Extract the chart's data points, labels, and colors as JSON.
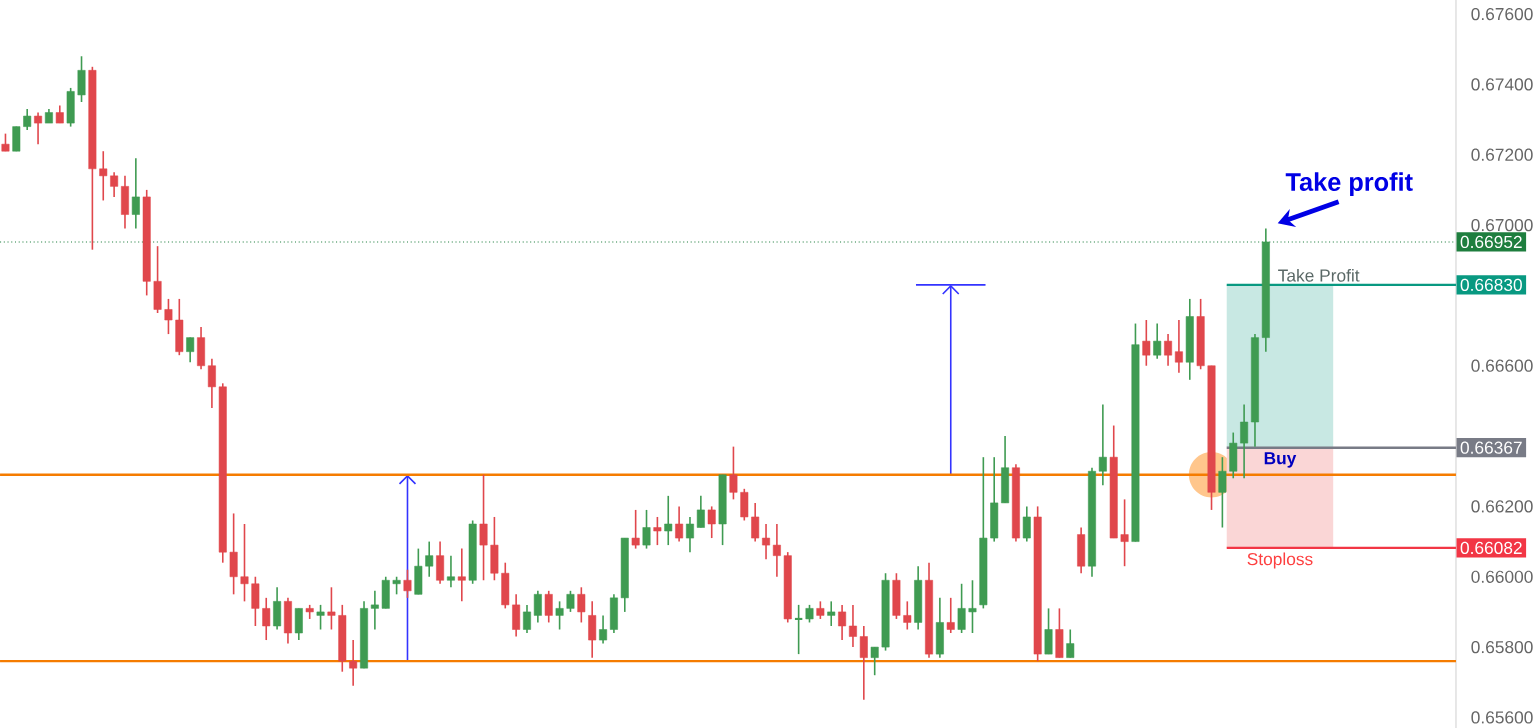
{
  "chart_data": {
    "type": "candlestick",
    "categories": [
      null,
      null,
      null,
      null,
      null,
      null,
      null,
      null,
      null,
      null,
      null,
      null,
      null,
      null,
      null,
      null,
      null,
      null,
      null,
      null,
      null,
      null,
      null,
      null,
      null,
      null,
      null,
      null,
      null,
      null,
      null,
      null,
      null,
      null,
      null,
      null,
      null,
      null,
      null,
      null,
      null,
      null,
      null,
      null,
      null,
      null,
      null,
      null,
      null,
      null,
      null,
      null,
      null,
      null,
      null,
      null,
      null,
      null,
      null,
      null,
      null,
      null,
      null,
      null,
      null,
      null,
      null,
      null,
      null,
      null,
      null,
      null,
      null,
      null,
      null,
      null,
      null,
      null,
      null,
      null,
      null,
      null,
      null,
      null,
      null,
      null,
      null,
      null,
      null,
      null,
      null,
      null,
      null,
      null,
      null,
      null,
      null,
      null,
      null,
      null,
      null,
      null,
      null,
      null,
      null,
      null,
      null,
      null,
      null,
      null,
      null,
      null,
      null,
      null,
      null,
      null,
      null,
      null,
      null,
      null,
      null,
      null,
      null,
      null,
      null,
      null,
      null,
      null,
      null,
      null,
      null,
      null,
      null,
      null
    ],
    "ohlc": [
      [
        0.6723,
        0.6726,
        0.6721,
        0.6721
      ],
      [
        0.6721,
        0.6728,
        0.6721,
        0.6728
      ],
      [
        0.6728,
        0.6733,
        0.6727,
        0.6731
      ],
      [
        0.6731,
        0.6732,
        0.6723,
        0.6729
      ],
      [
        0.6729,
        0.6733,
        0.6729,
        0.6732
      ],
      [
        0.6732,
        0.6734,
        0.6729,
        0.6729
      ],
      [
        0.6729,
        0.6739,
        0.6728,
        0.6738
      ],
      [
        0.6737,
        0.6748,
        0.6735,
        0.6744
      ],
      [
        0.6744,
        0.6745,
        0.6693,
        0.6716
      ],
      [
        0.6716,
        0.6721,
        0.6707,
        0.6714
      ],
      [
        0.6714,
        0.6715,
        0.6708,
        0.6711
      ],
      [
        0.6711,
        0.6714,
        0.6699,
        0.6703
      ],
      [
        0.6703,
        0.6719,
        0.6699,
        0.6708
      ],
      [
        0.6708,
        0.671,
        0.668,
        0.6684
      ],
      [
        0.6684,
        0.6694,
        0.6675,
        0.6676
      ],
      [
        0.6676,
        0.6679,
        0.6669,
        0.6673
      ],
      [
        0.6673,
        0.6679,
        0.6663,
        0.6664
      ],
      [
        0.6664,
        0.6668,
        0.6661,
        0.6668
      ],
      [
        0.6668,
        0.6671,
        0.6659,
        0.666
      ],
      [
        0.666,
        0.6662,
        0.6648,
        0.6654
      ],
      [
        0.6654,
        0.6655,
        0.6604,
        0.6607
      ],
      [
        0.6607,
        0.6618,
        0.6595,
        0.66
      ],
      [
        0.66,
        0.6615,
        0.6593,
        0.6598
      ],
      [
        0.6598,
        0.66,
        0.6586,
        0.6591
      ],
      [
        0.6591,
        0.6594,
        0.6582,
        0.6586
      ],
      [
        0.6586,
        0.6597,
        0.6585,
        0.6593
      ],
      [
        0.6593,
        0.6594,
        0.6581,
        0.6584
      ],
      [
        0.6584,
        0.6591,
        0.6582,
        0.6591
      ],
      [
        0.6591,
        0.6592,
        0.6588,
        0.659
      ],
      [
        0.6589,
        0.6592,
        0.6585,
        0.659
      ],
      [
        0.659,
        0.6597,
        0.6585,
        0.6589
      ],
      [
        0.6589,
        0.6592,
        0.6573,
        0.6576
      ],
      [
        0.6576,
        0.6582,
        0.6569,
        0.6574
      ],
      [
        0.6574,
        0.6593,
        0.6574,
        0.6591
      ],
      [
        0.6591,
        0.6596,
        0.6585,
        0.6592
      ],
      [
        0.6591,
        0.66,
        0.6591,
        0.6599
      ],
      [
        0.6598,
        0.66,
        0.6595,
        0.6599
      ],
      [
        0.6599,
        0.6602,
        0.6594,
        0.6596
      ],
      [
        0.6595,
        0.6608,
        0.6595,
        0.6603
      ],
      [
        0.6603,
        0.661,
        0.66,
        0.6606
      ],
      [
        0.6606,
        0.661,
        0.6598,
        0.6599
      ],
      [
        0.6599,
        0.6606,
        0.6597,
        0.66
      ],
      [
        0.66,
        0.6608,
        0.6593,
        0.6599
      ],
      [
        0.6599,
        0.6616,
        0.6598,
        0.6615
      ],
      [
        0.6615,
        0.6629,
        0.6599,
        0.6609
      ],
      [
        0.6609,
        0.6617,
        0.6599,
        0.6601
      ],
      [
        0.6601,
        0.6604,
        0.6591,
        0.6592
      ],
      [
        0.6592,
        0.6595,
        0.6583,
        0.6585
      ],
      [
        0.6585,
        0.6592,
        0.6584,
        0.659
      ],
      [
        0.6589,
        0.6596,
        0.6587,
        0.6595
      ],
      [
        0.6595,
        0.6596,
        0.6587,
        0.6589
      ],
      [
        0.6589,
        0.6593,
        0.6585,
        0.6591
      ],
      [
        0.6591,
        0.6596,
        0.659,
        0.6595
      ],
      [
        0.6595,
        0.6597,
        0.6587,
        0.659
      ],
      [
        0.6589,
        0.6593,
        0.6577,
        0.6582
      ],
      [
        0.6582,
        0.6589,
        0.6581,
        0.6585
      ],
      [
        0.6585,
        0.6595,
        0.6584,
        0.6594
      ],
      [
        0.6594,
        0.6611,
        0.659,
        0.6611
      ],
      [
        0.6611,
        0.6619,
        0.6608,
        0.6609
      ],
      [
        0.6609,
        0.6619,
        0.6608,
        0.6614
      ],
      [
        0.6614,
        0.6617,
        0.6609,
        0.6613
      ],
      [
        0.6613,
        0.6623,
        0.6609,
        0.6615
      ],
      [
        0.6615,
        0.662,
        0.661,
        0.6611
      ],
      [
        0.6611,
        0.6617,
        0.6607,
        0.6615
      ],
      [
        0.6614,
        0.6623,
        0.6614,
        0.6619
      ],
      [
        0.6619,
        0.662,
        0.6611,
        0.6615
      ],
      [
        0.6615,
        0.6629,
        0.6609,
        0.6629
      ],
      [
        0.6629,
        0.6637,
        0.6622,
        0.6624
      ],
      [
        0.6624,
        0.6625,
        0.6616,
        0.6617
      ],
      [
        0.6617,
        0.6621,
        0.661,
        0.6611
      ],
      [
        0.6611,
        0.6615,
        0.6605,
        0.6609
      ],
      [
        0.6609,
        0.6615,
        0.66,
        0.6606
      ],
      [
        0.6606,
        0.6607,
        0.6587,
        0.6588
      ],
      [
        0.6588,
        0.6592,
        0.6578,
        0.6588
      ],
      [
        0.6588,
        0.6592,
        0.6587,
        0.6591
      ],
      [
        0.6591,
        0.6593,
        0.6588,
        0.6589
      ],
      [
        0.6589,
        0.6593,
        0.6586,
        0.659
      ],
      [
        0.659,
        0.6592,
        0.6582,
        0.6586
      ],
      [
        0.6586,
        0.6592,
        0.658,
        0.6583
      ],
      [
        0.6583,
        0.6586,
        0.6565,
        0.6577
      ],
      [
        0.6577,
        0.658,
        0.6572,
        0.658
      ],
      [
        0.658,
        0.6601,
        0.6579,
        0.6599
      ],
      [
        0.6599,
        0.6601,
        0.6588,
        0.6589
      ],
      [
        0.6589,
        0.6593,
        0.6585,
        0.6587
      ],
      [
        0.6587,
        0.6603,
        0.6585,
        0.6599
      ],
      [
        0.6599,
        0.6604,
        0.6577,
        0.6578
      ],
      [
        0.6578,
        0.6594,
        0.6577,
        0.6587
      ],
      [
        0.6587,
        0.6594,
        0.6584,
        0.6585
      ],
      [
        0.6585,
        0.6598,
        0.6584,
        0.6591
      ],
      [
        0.659,
        0.6599,
        0.6584,
        0.6591
      ],
      [
        0.6592,
        0.6634,
        0.6591,
        0.6611
      ],
      [
        0.6611,
        0.6634,
        0.661,
        0.6621
      ],
      [
        0.6621,
        0.664,
        0.6621,
        0.6631
      ],
      [
        0.6631,
        0.6632,
        0.661,
        0.6611
      ],
      [
        0.6611,
        0.662,
        0.661,
        0.6617
      ],
      [
        0.6617,
        0.662,
        0.6576,
        0.6578
      ],
      [
        0.6578,
        0.6591,
        0.6578,
        0.6585
      ],
      [
        0.6585,
        0.6591,
        0.6577,
        0.6577
      ],
      [
        0.6577,
        0.6585,
        0.6577,
        0.6581
      ],
      [
        0.6612,
        0.6614,
        0.6601,
        0.6603
      ],
      [
        0.6603,
        0.6631,
        0.66,
        0.663
      ],
      [
        0.663,
        0.6649,
        0.6626,
        0.6634
      ],
      [
        0.6634,
        0.6643,
        0.6611,
        0.6611
      ],
      [
        0.6612,
        0.6622,
        0.6603,
        0.661
      ],
      [
        0.661,
        0.6672,
        0.661,
        0.6666
      ],
      [
        0.6667,
        0.6673,
        0.666,
        0.6663
      ],
      [
        0.6663,
        0.6672,
        0.6662,
        0.6667
      ],
      [
        0.6667,
        0.6669,
        0.666,
        0.6663
      ],
      [
        0.6664,
        0.6673,
        0.6658,
        0.6661
      ],
      [
        0.6661,
        0.6679,
        0.6656,
        0.6674
      ],
      [
        0.6674,
        0.6679,
        0.6659,
        0.666
      ],
      [
        0.666,
        0.666,
        0.6619,
        0.6624
      ],
      [
        0.6624,
        0.6634,
        0.6614,
        0.663
      ],
      [
        0.663,
        0.6641,
        0.6628,
        0.6638
      ],
      [
        0.6638,
        0.6649,
        0.6628,
        0.6644
      ],
      [
        0.6644,
        0.6669,
        0.6637,
        0.6668
      ],
      [
        0.6668,
        0.6699,
        0.6664,
        0.66952
      ],
      null,
      null,
      null,
      null,
      null,
      null,
      null,
      null,
      null,
      null,
      null,
      null,
      null,
      null,
      null,
      null,
      null
    ],
    "ylim": [
      0.6557,
      0.6764
    ],
    "yticks": [
      {
        "value": 0.656,
        "label": "0.65600"
      },
      {
        "value": 0.658,
        "label": "0.65800"
      },
      {
        "value": 0.66,
        "label": "0.66000"
      },
      {
        "value": 0.662,
        "label": "0.66200"
      },
      {
        "value": 0.666,
        "label": "0.66600"
      },
      {
        "value": 0.67,
        "label": "0.67000"
      },
      {
        "value": 0.672,
        "label": "0.67200"
      },
      {
        "value": 0.674,
        "label": "0.67400"
      },
      {
        "value": 0.676,
        "label": "0.67600"
      }
    ],
    "ref_lines": [
      {
        "axis": "y",
        "value": 0.6629,
        "color": "#f57c00"
      },
      {
        "axis": "y",
        "value": 0.6576,
        "color": "#f57c00"
      },
      {
        "axis": "y",
        "value": 0.66952,
        "label": "0.66952",
        "color": "#1e7e3e",
        "line_style": "dotted"
      },
      {
        "axis": "y",
        "value": 0.6683,
        "label": "0.66830",
        "color": "#089981"
      },
      {
        "axis": "y",
        "value": 0.66367,
        "label": "0.66367",
        "color": "#787b86"
      },
      {
        "axis": "y",
        "value": 0.66082,
        "label": "0.66082",
        "color": "#f23645"
      }
    ],
    "bands": [
      {
        "axis": "y",
        "from": 0.66367,
        "to": 0.6683,
        "label": "Take Profit",
        "color": "#c8e8e3"
      },
      {
        "axis": "y",
        "from": 0.66082,
        "to": 0.66367,
        "label": "Stoploss",
        "color": "#fad6d6"
      }
    ],
    "annotations": [
      "Take profit",
      {
        "text": "Buy",
        "y": 0.66367
      }
    ]
  }
}
